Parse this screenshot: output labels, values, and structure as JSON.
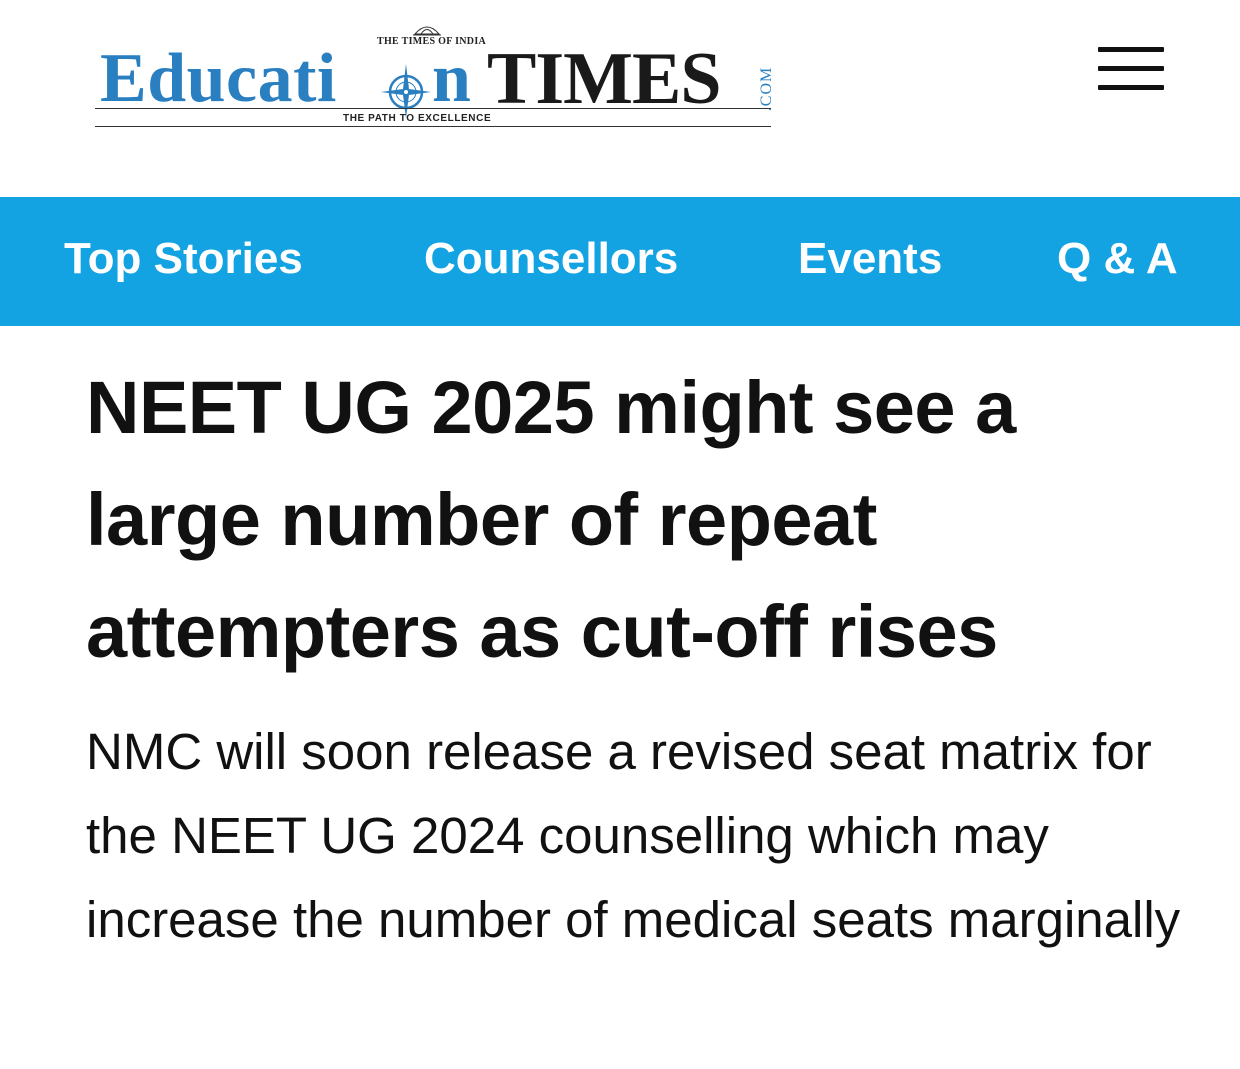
{
  "header": {
    "logo": {
      "publisher": "THE TIMES OF INDIA",
      "word_education": "Educati",
      "word_education_end": "n",
      "word_times": "TIMES",
      "domain_suffix": ".COM",
      "tagline": "THE PATH TO EXCELLENCE",
      "colors": {
        "blue": "#2a7fc1",
        "dark": "#1a1a1a"
      }
    },
    "menu_icon": "hamburger-menu-icon"
  },
  "nav": {
    "background": "#13a2e2",
    "items": [
      {
        "label": "Top Stories"
      },
      {
        "label": "Counsellors"
      },
      {
        "label": "Events"
      },
      {
        "label": "Q & A"
      }
    ]
  },
  "article": {
    "headline": "NEET UG 2025 might see a large number of repeat attempters as cut-off rises",
    "summary": "NMC will soon release a revised seat matrix for the NEET UG 2024 counselling which may increase the number of medical seats marginally"
  }
}
